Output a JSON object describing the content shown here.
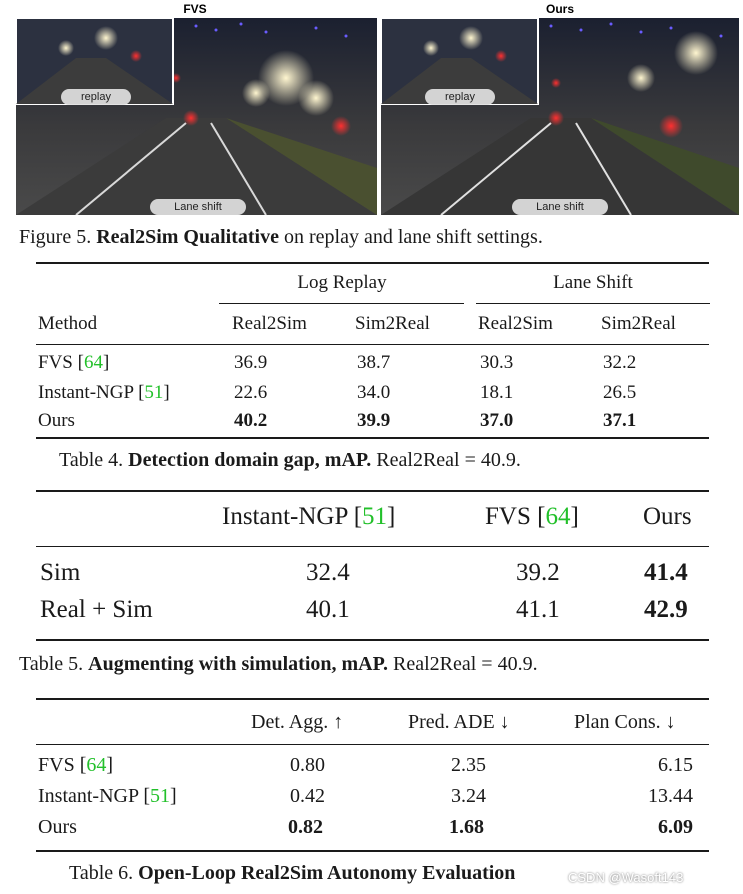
{
  "figure5": {
    "left_title": "FVS",
    "right_title": "Ours",
    "replay_label": "replay",
    "lane_shift_label": "Lane shift",
    "caption_prefix": "Figure 5.",
    "caption_bold": "Real2Sim Qualitative",
    "caption_rest": "on replay and lane shift settings."
  },
  "table4": {
    "group1": "Log Replay",
    "group2": "Lane Shift",
    "columns": [
      "Method",
      "Real2Sim",
      "Sim2Real",
      "Real2Sim",
      "Sim2Real"
    ],
    "rows": [
      {
        "method": "FVS",
        "ref": "64",
        "values": [
          "36.9",
          "38.7",
          "30.3",
          "32.2"
        ],
        "bold": false
      },
      {
        "method": "Instant-NGP",
        "ref": "51",
        "values": [
          "22.6",
          "34.0",
          "18.1",
          "26.5"
        ],
        "bold": false
      },
      {
        "method": "Ours",
        "ref": "",
        "values": [
          "40.2",
          "39.9",
          "37.0",
          "37.1"
        ],
        "bold": true
      }
    ],
    "caption_prefix": "Table 4.",
    "caption_bold": "Detection domain gap, mAP.",
    "caption_rest": "Real2Real = 40.9."
  },
  "table5": {
    "columns": [
      {
        "name": "Instant-NGP",
        "ref": "51"
      },
      {
        "name": "FVS",
        "ref": "64"
      },
      {
        "name": "Ours",
        "ref": ""
      }
    ],
    "rows": [
      {
        "label": "Sim",
        "values": [
          "32.4",
          "39.2",
          "41.4"
        ]
      },
      {
        "label": "Real + Sim",
        "values": [
          "40.1",
          "41.1",
          "42.9"
        ]
      }
    ],
    "caption_prefix": "Table 5.",
    "caption_bold": "Augmenting with simulation, mAP.",
    "caption_rest": "Real2Real = 40.9."
  },
  "table6": {
    "columns": [
      "Det. Agg. ↑",
      "Pred. ADE ↓",
      "Plan Cons. ↓"
    ],
    "rows": [
      {
        "method": "FVS",
        "ref": "64",
        "values": [
          "0.80",
          "2.35",
          "6.15"
        ],
        "bold": false
      },
      {
        "method": "Instant-NGP",
        "ref": "51",
        "values": [
          "0.42",
          "3.24",
          "13.44"
        ],
        "bold": false
      },
      {
        "method": "Ours",
        "ref": "",
        "values": [
          "0.82",
          "1.68",
          "6.09"
        ],
        "bold": true
      }
    ],
    "caption_prefix": "Table 6.",
    "caption_bold": "Open-Loop Real2Sim Autonomy Evaluation"
  },
  "watermark": "CSDN @Wasoft143",
  "colors": {
    "ref": "#22c02a",
    "rule": "#1a1a1a"
  }
}
